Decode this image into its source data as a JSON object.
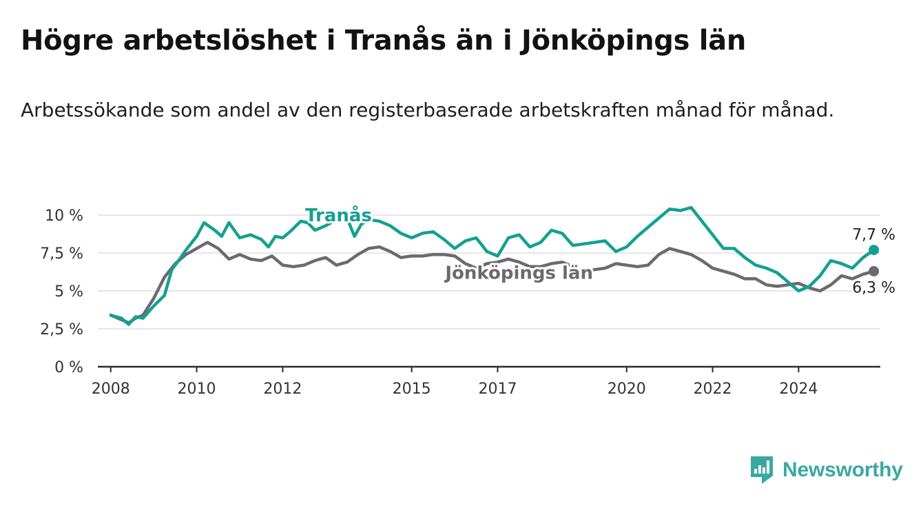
{
  "header": {
    "title": "Högre arbetslöshet i Tranås än i Jönköpings län",
    "subtitle": "Arbetssökande som andel av den registerbaserade arbetskraften månad för månad."
  },
  "brand": {
    "name": "Newsworthy",
    "icon": "bar-chart-logo-icon",
    "color": "#3aa8a0"
  },
  "chart_data": {
    "type": "line",
    "y_axis": {
      "ylim": [
        0,
        10.5
      ],
      "ticks": [
        0,
        2.5,
        5,
        7.5,
        10
      ],
      "tick_labels": [
        "0 %",
        "2,5 %",
        "5 %",
        "7,5 %",
        "10 %"
      ],
      "grid": true
    },
    "x_axis": {
      "xlim": [
        2007.7,
        2025.9
      ],
      "ticks": [
        2008,
        2010,
        2012,
        2015,
        2017,
        2020,
        2022,
        2024
      ],
      "tick_labels": [
        "2008",
        "2010",
        "2012",
        "2015",
        "2017",
        "2020",
        "2022",
        "2024"
      ]
    },
    "series": [
      {
        "name": "Jönköpings län",
        "color": "#6d6a6d",
        "end_label": "6,3 %",
        "points": [
          [
            2008.0,
            3.4
          ],
          [
            2008.25,
            3.1
          ],
          [
            2008.42,
            2.9
          ],
          [
            2008.58,
            3.2
          ],
          [
            2008.75,
            3.4
          ],
          [
            2009.0,
            4.5
          ],
          [
            2009.25,
            5.9
          ],
          [
            2009.5,
            6.8
          ],
          [
            2009.75,
            7.4
          ],
          [
            2010.0,
            7.8
          ],
          [
            2010.25,
            8.2
          ],
          [
            2010.5,
            7.8
          ],
          [
            2010.75,
            7.1
          ],
          [
            2011.0,
            7.4
          ],
          [
            2011.25,
            7.1
          ],
          [
            2011.5,
            7.0
          ],
          [
            2011.75,
            7.3
          ],
          [
            2012.0,
            6.7
          ],
          [
            2012.25,
            6.6
          ],
          [
            2012.5,
            6.7
          ],
          [
            2012.75,
            7.0
          ],
          [
            2013.0,
            7.2
          ],
          [
            2013.25,
            6.7
          ],
          [
            2013.5,
            6.9
          ],
          [
            2013.75,
            7.4
          ],
          [
            2014.0,
            7.8
          ],
          [
            2014.25,
            7.9
          ],
          [
            2014.5,
            7.6
          ],
          [
            2014.75,
            7.2
          ],
          [
            2015.0,
            7.3
          ],
          [
            2015.25,
            7.3
          ],
          [
            2015.5,
            7.4
          ],
          [
            2015.75,
            7.4
          ],
          [
            2016.0,
            7.3
          ],
          [
            2016.25,
            6.8
          ],
          [
            2016.5,
            6.5
          ],
          [
            2016.75,
            6.8
          ],
          [
            2017.0,
            6.9
          ],
          [
            2017.25,
            7.1
          ],
          [
            2017.5,
            6.9
          ],
          [
            2017.75,
            6.6
          ],
          [
            2018.0,
            6.6
          ],
          [
            2018.25,
            6.8
          ],
          [
            2018.5,
            6.9
          ],
          [
            2018.75,
            6.6
          ],
          [
            2019.0,
            6.2
          ],
          [
            2019.25,
            6.4
          ],
          [
            2019.5,
            6.5
          ],
          [
            2019.75,
            6.8
          ],
          [
            2020.0,
            6.7
          ],
          [
            2020.25,
            6.6
          ],
          [
            2020.5,
            6.7
          ],
          [
            2020.75,
            7.4
          ],
          [
            2021.0,
            7.8
          ],
          [
            2021.25,
            7.6
          ],
          [
            2021.5,
            7.4
          ],
          [
            2021.75,
            7.0
          ],
          [
            2022.0,
            6.5
          ],
          [
            2022.25,
            6.3
          ],
          [
            2022.5,
            6.1
          ],
          [
            2022.75,
            5.8
          ],
          [
            2023.0,
            5.8
          ],
          [
            2023.25,
            5.4
          ],
          [
            2023.5,
            5.3
          ],
          [
            2023.75,
            5.4
          ],
          [
            2024.0,
            5.5
          ],
          [
            2024.25,
            5.2
          ],
          [
            2024.5,
            5.0
          ],
          [
            2024.75,
            5.4
          ],
          [
            2025.0,
            6.0
          ],
          [
            2025.25,
            5.8
          ],
          [
            2025.5,
            6.1
          ],
          [
            2025.75,
            6.3
          ]
        ]
      },
      {
        "name": "Tranås",
        "color": "#14a091",
        "end_label": "7,7 %",
        "points": [
          [
            2008.0,
            3.4
          ],
          [
            2008.25,
            3.2
          ],
          [
            2008.42,
            2.8
          ],
          [
            2008.58,
            3.3
          ],
          [
            2008.75,
            3.2
          ],
          [
            2009.0,
            4.0
          ],
          [
            2009.25,
            4.7
          ],
          [
            2009.42,
            6.4
          ],
          [
            2009.58,
            7.0
          ],
          [
            2009.75,
            7.7
          ],
          [
            2010.0,
            8.6
          ],
          [
            2010.17,
            9.5
          ],
          [
            2010.42,
            9.0
          ],
          [
            2010.58,
            8.6
          ],
          [
            2010.75,
            9.5
          ],
          [
            2011.0,
            8.5
          ],
          [
            2011.25,
            8.7
          ],
          [
            2011.5,
            8.4
          ],
          [
            2011.67,
            7.9
          ],
          [
            2011.83,
            8.6
          ],
          [
            2012.0,
            8.5
          ],
          [
            2012.17,
            8.9
          ],
          [
            2012.42,
            9.6
          ],
          [
            2012.58,
            9.5
          ],
          [
            2012.75,
            9.0
          ],
          [
            2013.0,
            9.3
          ],
          [
            2013.25,
            9.7
          ],
          [
            2013.5,
            9.8
          ],
          [
            2013.67,
            8.6
          ],
          [
            2013.83,
            9.4
          ],
          [
            2014.0,
            9.7
          ],
          [
            2014.25,
            9.6
          ],
          [
            2014.5,
            9.3
          ],
          [
            2014.75,
            8.8
          ],
          [
            2015.0,
            8.5
          ],
          [
            2015.25,
            8.8
          ],
          [
            2015.5,
            8.9
          ],
          [
            2015.75,
            8.4
          ],
          [
            2016.0,
            7.8
          ],
          [
            2016.25,
            8.3
          ],
          [
            2016.5,
            8.5
          ],
          [
            2016.75,
            7.6
          ],
          [
            2017.0,
            7.3
          ],
          [
            2017.25,
            8.5
          ],
          [
            2017.5,
            8.7
          ],
          [
            2017.75,
            7.9
          ],
          [
            2018.0,
            8.2
          ],
          [
            2018.25,
            9.0
          ],
          [
            2018.5,
            8.8
          ],
          [
            2018.75,
            8.0
          ],
          [
            2019.0,
            8.1
          ],
          [
            2019.25,
            8.2
          ],
          [
            2019.5,
            8.3
          ],
          [
            2019.75,
            7.6
          ],
          [
            2020.0,
            7.9
          ],
          [
            2020.25,
            8.6
          ],
          [
            2020.5,
            9.2
          ],
          [
            2020.75,
            9.8
          ],
          [
            2021.0,
            10.4
          ],
          [
            2021.25,
            10.3
          ],
          [
            2021.5,
            10.5
          ],
          [
            2021.75,
            9.6
          ],
          [
            2022.0,
            8.7
          ],
          [
            2022.25,
            7.8
          ],
          [
            2022.5,
            7.8
          ],
          [
            2022.75,
            7.2
          ],
          [
            2023.0,
            6.7
          ],
          [
            2023.25,
            6.5
          ],
          [
            2023.5,
            6.2
          ],
          [
            2023.75,
            5.6
          ],
          [
            2024.0,
            5.0
          ],
          [
            2024.25,
            5.3
          ],
          [
            2024.5,
            6.0
          ],
          [
            2024.75,
            7.0
          ],
          [
            2025.0,
            6.8
          ],
          [
            2025.25,
            6.5
          ],
          [
            2025.5,
            7.2
          ],
          [
            2025.75,
            7.7
          ]
        ]
      }
    ],
    "series_labels": [
      {
        "text": "Tranås",
        "series": "Tranås",
        "x": 2013.3,
        "y": 9.6
      },
      {
        "text": "Jönköpings län",
        "series": "Jönköpings län",
        "x": 2017.5,
        "y": 5.8
      }
    ]
  }
}
